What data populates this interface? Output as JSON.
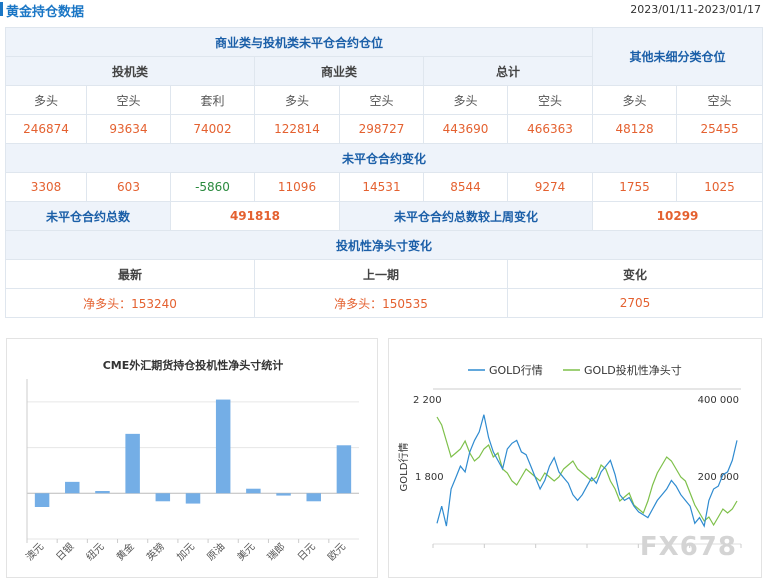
{
  "header": {
    "title": "黄金持仓数据",
    "date_range": "2023/01/11-2023/01/17"
  },
  "positions": {
    "commercial_spec_title": "商业类与投机类未平仓合约仓位",
    "other_title": "其他未细分类仓位",
    "groups": {
      "spec": "投机类",
      "comm": "商业类",
      "total": "总计"
    },
    "cols": {
      "long": "多头",
      "short": "空头",
      "arb": "套利"
    },
    "values": [
      "246874",
      "93634",
      "74002",
      "122814",
      "298727",
      "443690",
      "466363",
      "48128",
      "25455"
    ],
    "change_title": "未平仓合约变化",
    "changes": [
      "3308",
      "603",
      "-5860",
      "11096",
      "14531",
      "8544",
      "9274",
      "1755",
      "1025"
    ],
    "oi_total_label": "未平仓合约总数",
    "oi_total": "491818",
    "oi_change_label": "未平仓合约总数较上周变化",
    "oi_change": "10299",
    "net_title": "投机性净头寸变化",
    "net_cols": {
      "latest": "最新",
      "previous": "上一期",
      "change": "变化"
    },
    "net_latest": "净多头：153240",
    "net_previous": "净多头：150535",
    "net_change": "2705"
  },
  "colors": {
    "accent": "#1a76c5",
    "number": "#e46130",
    "bar": "#74aee6",
    "gold_line": "#2f8bd0",
    "net_line": "#7ec04a"
  },
  "chart_data": [
    {
      "type": "bar",
      "title": "CME外汇期货持仓投机性净头寸统计",
      "categories": [
        "澳元",
        "日银",
        "纽元",
        "黄金",
        "英镑",
        "加元",
        "原油",
        "美元",
        "瑞郎",
        "日元",
        "欧元"
      ],
      "values": [
        -12,
        10,
        2,
        52,
        -7,
        -9,
        82,
        4,
        -2,
        -7,
        42
      ],
      "ylim": [
        -40,
        100
      ],
      "grid": true
    },
    {
      "type": "line",
      "legend": [
        "GOLD行情",
        "GOLD投机性净头寸"
      ],
      "legend_position": "top",
      "ylabel": "GOLD行情",
      "left_ticks": [
        "2 200",
        "1 800"
      ],
      "right_ticks": [
        "400 000",
        "200 000"
      ],
      "series": [
        {
          "name": "GOLD行情",
          "values": [
            1700,
            1760,
            1690,
            1820,
            1860,
            1900,
            1880,
            1950,
            1990,
            2020,
            2080,
            2000,
            1950,
            1920,
            1890,
            1960,
            1980,
            1990,
            1950,
            1940,
            1900,
            1860,
            1820,
            1850,
            1900,
            1930,
            1880,
            1860,
            1840,
            1800,
            1780,
            1800,
            1830,
            1860,
            1840,
            1880,
            1900,
            1920,
            1870,
            1800,
            1780,
            1790,
            1760,
            1740,
            1730,
            1720,
            1750,
            1780,
            1800,
            1820,
            1850,
            1830,
            1800,
            1780,
            1760,
            1700,
            1720,
            1690,
            1780,
            1820,
            1830,
            1870,
            1880,
            1920,
            1990
          ]
        },
        {
          "name": "GOLD投机性净头寸",
          "values": [
            400000,
            380000,
            340000,
            300000,
            310000,
            320000,
            340000,
            310000,
            290000,
            300000,
            320000,
            330000,
            300000,
            310000,
            270000,
            260000,
            240000,
            230000,
            250000,
            270000,
            260000,
            250000,
            240000,
            260000,
            250000,
            240000,
            250000,
            270000,
            280000,
            290000,
            270000,
            260000,
            250000,
            240000,
            250000,
            280000,
            270000,
            240000,
            220000,
            190000,
            200000,
            210000,
            180000,
            170000,
            160000,
            190000,
            230000,
            260000,
            280000,
            300000,
            290000,
            270000,
            250000,
            240000,
            210000,
            180000,
            160000,
            140000,
            150000,
            130000,
            150000,
            170000,
            160000,
            170000,
            190000
          ]
        }
      ]
    }
  ],
  "watermark": "FX678"
}
